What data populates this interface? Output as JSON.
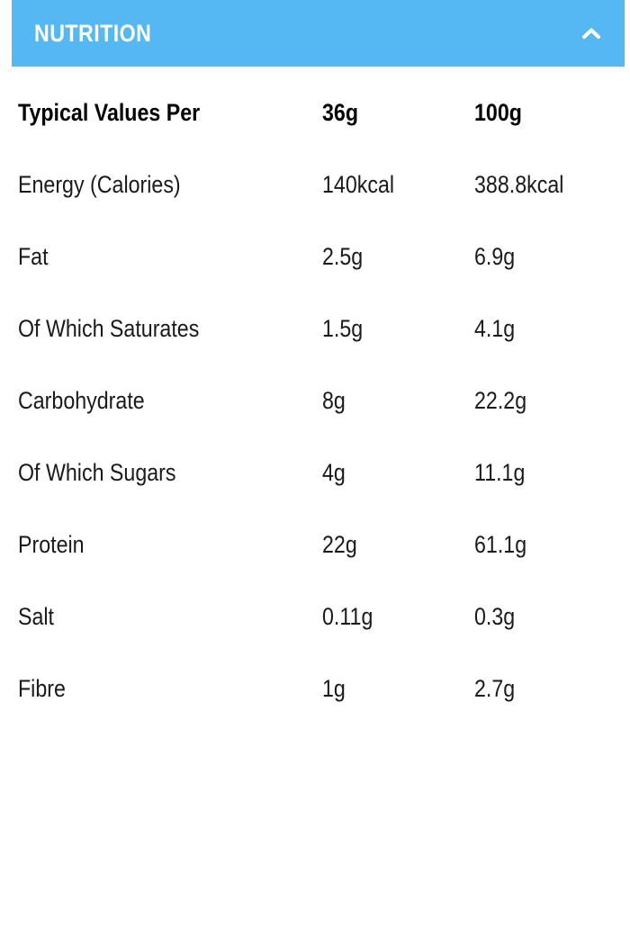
{
  "accordion": {
    "title": "NUTRITION",
    "state": "expanded",
    "toggle_icon": "chevron-up-icon",
    "header_color": "#55b8f3"
  },
  "table": {
    "headers": [
      "Typical Values Per",
      "36g",
      "100g"
    ],
    "rows": [
      [
        "Energy (Calories)",
        "140kcal",
        "388.8kcal"
      ],
      [
        "Fat",
        "2.5g",
        "6.9g"
      ],
      [
        "Of Which Saturates",
        "1.5g",
        "4.1g"
      ],
      [
        "Carbohydrate",
        "8g",
        "22.2g"
      ],
      [
        "Of Which Sugars",
        "4g",
        "11.1g"
      ],
      [
        "Protein",
        "22g",
        "61.1g"
      ],
      [
        "Salt",
        "0.11g",
        "0.3g"
      ],
      [
        "Fibre",
        "1g",
        "2.7g"
      ]
    ]
  }
}
